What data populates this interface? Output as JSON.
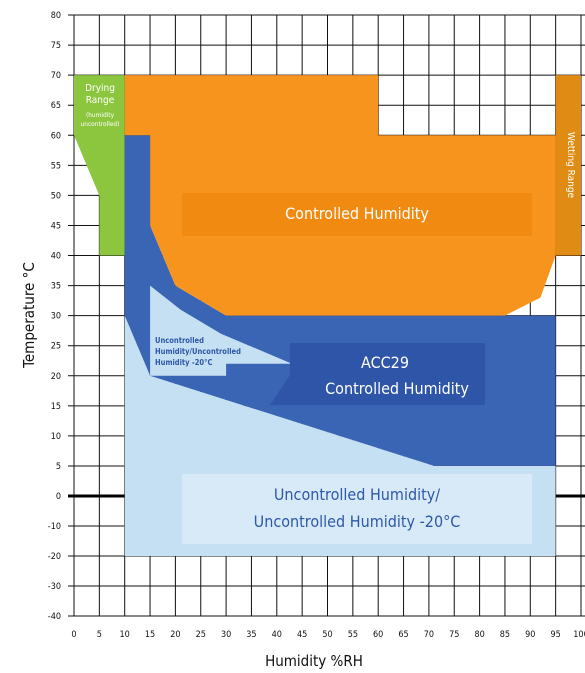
{
  "chart_data": {
    "type": "area",
    "xlabel": "Humidity %RH",
    "ylabel": "Temperature °C",
    "xlim": [
      0,
      100
    ],
    "x_ticks": [
      0,
      5,
      10,
      15,
      20,
      25,
      30,
      35,
      40,
      45,
      50,
      55,
      60,
      65,
      70,
      75,
      80,
      85,
      90,
      95,
      100
    ],
    "y_ticks": [
      80,
      75,
      70,
      65,
      60,
      55,
      50,
      45,
      40,
      35,
      30,
      25,
      20,
      15,
      10,
      5,
      0,
      -10,
      -20,
      -30,
      -40
    ],
    "grid": true,
    "colors": {
      "drying": "#8cc63f",
      "wetting": "#e08c14",
      "controlled": "#f7941d",
      "controlled_box": "#f08a10",
      "acc29": "#3a64b4",
      "acc29_box": "#2e55a8",
      "uncontrolled": "#c6e0f3",
      "uncontrolled_box": "#d8eaf7",
      "small_uncontrolled": "#c6e0f3",
      "label_white": "#ffffff",
      "label_blue": "#2e58a8"
    },
    "regions": [
      {
        "name": "Drying Range",
        "label_lines": [
          "Drying",
          "Range"
        ],
        "sub_label_lines": [
          "(humidity",
          "uncontrolled)"
        ],
        "polygon": [
          [
            0,
            70
          ],
          [
            10,
            70
          ],
          [
            10,
            40
          ],
          [
            5,
            40
          ],
          [
            5,
            50
          ],
          [
            0,
            60
          ]
        ]
      },
      {
        "name": "Wetting Range",
        "label": "Wetting Range",
        "polygon": [
          [
            95,
            70
          ],
          [
            100,
            70
          ],
          [
            100,
            40
          ],
          [
            95,
            40
          ]
        ]
      },
      {
        "name": "Uncontrolled Humidity/ Uncontrolled Humidity -20°C",
        "label_lines": [
          "Uncontrolled Humidity/",
          "Uncontrolled Humidity -20°C"
        ],
        "polygon": [
          [
            10,
            30
          ],
          [
            15,
            20
          ],
          [
            71,
            5
          ],
          [
            95,
            5
          ],
          [
            95,
            -20
          ],
          [
            10,
            -20
          ]
        ]
      },
      {
        "name": "ACC29 Controlled Humidity",
        "label_lines": [
          "ACC29",
          "Controlled Humidity"
        ],
        "polygon": [
          [
            10,
            60
          ],
          [
            15,
            60
          ],
          [
            15,
            45
          ],
          [
            20,
            35
          ],
          [
            30,
            30
          ],
          [
            95,
            30
          ],
          [
            95,
            5
          ],
          [
            71,
            5
          ],
          [
            15,
            20
          ],
          [
            10,
            30
          ]
        ]
      },
      {
        "name": "Uncontrolled Humidity/Uncontrolled Humidity -20°C (small)",
        "label_lines": [
          "Uncontrolled",
          "Humidity/Uncontrolled",
          "Humidity -20°C"
        ],
        "polygon": [
          [
            15,
            35
          ],
          [
            21,
            31
          ],
          [
            29,
            27
          ],
          [
            43,
            22
          ],
          [
            30,
            22
          ],
          [
            30,
            20
          ],
          [
            15,
            20
          ]
        ]
      },
      {
        "name": "Controlled Humidity",
        "label": "Controlled Humidity",
        "polygon": [
          [
            10,
            70
          ],
          [
            60,
            70
          ],
          [
            60,
            60
          ],
          [
            95,
            60
          ],
          [
            95,
            40
          ],
          [
            92,
            33
          ],
          [
            85,
            30
          ],
          [
            30,
            30
          ],
          [
            20,
            35
          ],
          [
            15,
            45
          ],
          [
            15,
            60
          ],
          [
            10,
            60
          ]
        ]
      }
    ]
  }
}
